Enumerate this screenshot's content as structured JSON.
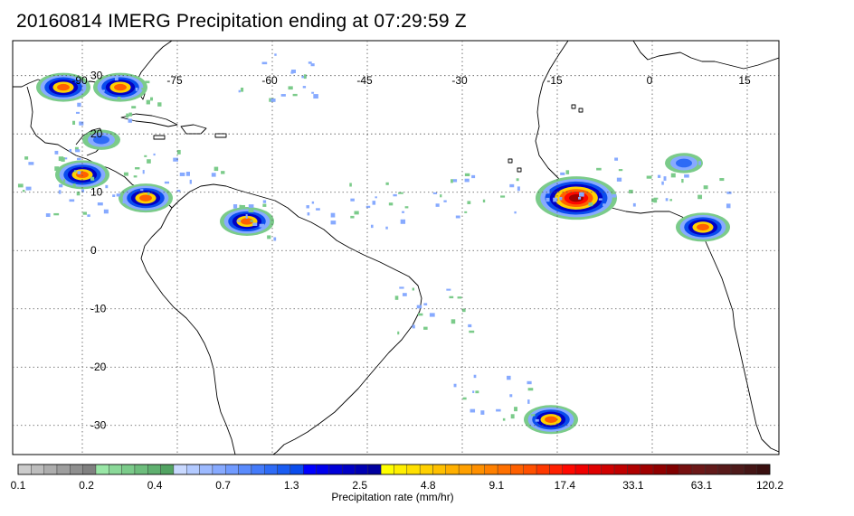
{
  "title": "20160814 IMERG Precipitation ending at 07:29:59 Z",
  "map": {
    "lon_labels": [
      "-90",
      "-75",
      "-60",
      "-45",
      "-30",
      "-15",
      "0",
      "15"
    ],
    "lat_labels": [
      "30",
      "20",
      "10",
      "0",
      "-10",
      "-20",
      "-30"
    ],
    "lon_values": [
      -90,
      -75,
      -60,
      -45,
      -30,
      -15,
      0,
      15
    ],
    "lat_values": [
      30,
      20,
      10,
      0,
      -10,
      -20,
      -30
    ],
    "lon_range": [
      -101,
      20
    ],
    "lat_range": [
      36,
      -35
    ],
    "precip_regions": [
      {
        "name": "gulf-of-mexico-nw",
        "lon": -93,
        "lat": 28,
        "intensity": "high"
      },
      {
        "name": "gulf-of-mexico-ne",
        "lon": -84,
        "lat": 28,
        "intensity": "high"
      },
      {
        "name": "yucatan",
        "lon": -87,
        "lat": 19,
        "intensity": "medium"
      },
      {
        "name": "central-america",
        "lon": -90,
        "lat": 13,
        "intensity": "high"
      },
      {
        "name": "caribbean-south",
        "lon": -80,
        "lat": 9,
        "intensity": "high"
      },
      {
        "name": "northern-south-america",
        "lon": -64,
        "lat": 5,
        "intensity": "high"
      },
      {
        "name": "west-africa-coast",
        "lon": -12,
        "lat": 9,
        "intensity": "very-high"
      },
      {
        "name": "sahel-east",
        "lon": 5,
        "lat": 15,
        "intensity": "medium"
      },
      {
        "name": "gulf-of-guinea",
        "lon": 8,
        "lat": 4,
        "intensity": "high"
      },
      {
        "name": "south-atlantic",
        "lon": -16,
        "lat": -29,
        "intensity": "high"
      }
    ]
  },
  "colorbar": {
    "title": "Precipitation rate (mm/hr)",
    "labels": [
      "0.1",
      "0.2",
      "0.4",
      "0.7",
      "1.3",
      "2.5",
      "4.8",
      "9.1",
      "17.4",
      "33.1",
      "63.1",
      "120.2"
    ],
    "colors": {
      "gray": [
        "#cccccc",
        "#bdbdbd",
        "#adadad",
        "#9e9e9e",
        "#8f8f8f",
        "#808080"
      ],
      "green": [
        "#99e6a6",
        "#8ad898",
        "#7bcb8a",
        "#6dbd7c",
        "#5fb06f",
        "#52a362"
      ],
      "lightblue": [
        "#c9d9ff",
        "#b3caff",
        "#9dbaff",
        "#87aaff",
        "#719bff",
        "#5a8bfd",
        "#447bfa",
        "#2e6bf6",
        "#1a5cf2",
        "#0a4ced"
      ],
      "blue": [
        "#0000ff",
        "#0000ec",
        "#0000d8",
        "#0000c5",
        "#0000b2",
        "#00009f"
      ],
      "yellow": [
        "#ffff00",
        "#ffef00",
        "#ffe000",
        "#ffd000",
        "#ffc000",
        "#ffb000",
        "#ffa000",
        "#ff9000",
        "#ff8000",
        "#ff7000",
        "#ff6000",
        "#ff5000",
        "#ff3800",
        "#ff2000",
        "#ff0800",
        "#f00000"
      ],
      "red": [
        "#e00000",
        "#d00000",
        "#c00000",
        "#b00000",
        "#a00000",
        "#900000"
      ],
      "dark": [
        "#800000",
        "#761010",
        "#6c1818",
        "#621a1a",
        "#581a1a",
        "#4e1a1a",
        "#441515",
        "#3a1010"
      ]
    }
  }
}
